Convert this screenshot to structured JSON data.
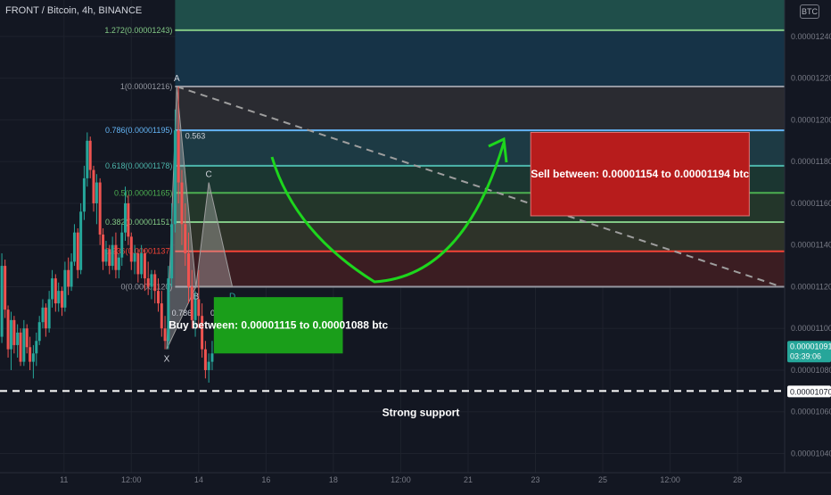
{
  "header": {
    "title": "FRONT / Bitcoin, 4h, BINANCE",
    "badge": "BTC"
  },
  "colors": {
    "background": "#131722",
    "up": "#26a69a",
    "down": "#ef5350",
    "buy_box": "#1a9e1a",
    "sell_box": "#b71c1c",
    "arrow": "#1dd61d"
  },
  "chart_data": {
    "type": "candlestick",
    "instrument": "FRONT / Bitcoin",
    "timeframe": "4h",
    "exchange": "BINANCE",
    "y_ticks": [
      "0.00001240",
      "0.00001220",
      "0.00001200",
      "0.00001180",
      "0.00001160",
      "0.00001140",
      "0.00001120",
      "0.00001100",
      "0.00001080",
      "0.00001060",
      "0.00001040"
    ],
    "y_tick_values": [
      1.24e-05,
      1.22e-05,
      1.2e-05,
      1.18e-05,
      1.16e-05,
      1.14e-05,
      1.12e-05,
      1.1e-05,
      1.08e-05,
      1.06e-05,
      1.04e-05
    ],
    "x_ticks": [
      {
        "label": "11",
        "v": 9.3
      },
      {
        "label": "12:00",
        "v": 11.3
      },
      {
        "label": "14",
        "v": 13.3
      },
      {
        "label": "16",
        "v": 15.3
      },
      {
        "label": "18",
        "v": 17.3
      },
      {
        "label": "12:00",
        "v": 19.3
      },
      {
        "label": "21",
        "v": 21.3
      },
      {
        "label": "23",
        "v": 23.3
      },
      {
        "label": "25",
        "v": 25.3
      },
      {
        "label": "12:00",
        "v": 27.3
      },
      {
        "label": "28",
        "v": 29.3
      }
    ],
    "x_range": [
      7.4,
      30.7
    ],
    "y_range": [
      1.0308e-05,
      1.2575e-05
    ],
    "candles": [
      {
        "x": 7.455,
        "o": 1.096e-05,
        "h": 1.136e-05,
        "l": 1.093e-05,
        "c": 1.13e-05
      },
      {
        "x": 7.55,
        "o": 1.13e-05,
        "h": 1.133e-05,
        "l": 1.105e-05,
        "c": 1.109e-05
      },
      {
        "x": 7.64,
        "o": 1.109e-05,
        "h": 1.111e-05,
        "l": 1.086e-05,
        "c": 1.09e-05
      },
      {
        "x": 7.73,
        "o": 1.09e-05,
        "h": 1.108e-05,
        "l": 1.08e-05,
        "c": 1.104e-05
      },
      {
        "x": 7.82,
        "o": 1.104e-05,
        "h": 1.106e-05,
        "l": 1.088e-05,
        "c": 1.092e-05
      },
      {
        "x": 7.92,
        "o": 1.092e-05,
        "h": 1.102e-05,
        "l": 1.086e-05,
        "c": 1.098e-05
      },
      {
        "x": 8.01,
        "o": 1.098e-05,
        "h": 1.1e-05,
        "l": 1.082e-05,
        "c": 1.084e-05
      },
      {
        "x": 8.11,
        "o": 1.084e-05,
        "h": 1.104e-05,
        "l": 1.082e-05,
        "c": 1.1e-05
      },
      {
        "x": 8.2,
        "o": 1.1e-05,
        "h": 1.102e-05,
        "l": 1.088e-05,
        "c": 1.091e-05
      },
      {
        "x": 8.29,
        "o": 1.091e-05,
        "h": 1.096e-05,
        "l": 1.08e-05,
        "c": 1.084e-05
      },
      {
        "x": 8.39,
        "o": 1.084e-05,
        "h": 1.092e-05,
        "l": 1.076e-05,
        "c": 1.088e-05
      },
      {
        "x": 8.48,
        "o": 1.088e-05,
        "h": 1.098e-05,
        "l": 1.082e-05,
        "c": 1.094e-05
      },
      {
        "x": 8.57,
        "o": 1.094e-05,
        "h": 1.106e-05,
        "l": 1.092e-05,
        "c": 1.103e-05
      },
      {
        "x": 8.67,
        "o": 1.103e-05,
        "h": 1.114e-05,
        "l": 1.1e-05,
        "c": 1.11e-05
      },
      {
        "x": 8.76,
        "o": 1.11e-05,
        "h": 1.112e-05,
        "l": 1.096e-05,
        "c": 1.1e-05
      },
      {
        "x": 8.86,
        "o": 1.1e-05,
        "h": 1.118e-05,
        "l": 1.098e-05,
        "c": 1.114e-05
      },
      {
        "x": 8.95,
        "o": 1.114e-05,
        "h": 1.128e-05,
        "l": 1.11e-05,
        "c": 1.124e-05
      },
      {
        "x": 9.05,
        "o": 1.124e-05,
        "h": 1.126e-05,
        "l": 1.108e-05,
        "c": 1.112e-05
      },
      {
        "x": 9.14,
        "o": 1.112e-05,
        "h": 1.122e-05,
        "l": 1.108e-05,
        "c": 1.118e-05
      },
      {
        "x": 9.24,
        "o": 1.118e-05,
        "h": 1.12e-05,
        "l": 1.106e-05,
        "c": 1.11e-05
      },
      {
        "x": 9.33,
        "o": 1.11e-05,
        "h": 1.132e-05,
        "l": 1.108e-05,
        "c": 1.128e-05
      },
      {
        "x": 9.43,
        "o": 1.128e-05,
        "h": 1.134e-05,
        "l": 1.116e-05,
        "c": 1.12e-05
      },
      {
        "x": 9.52,
        "o": 1.12e-05,
        "h": 1.136e-05,
        "l": 1.118e-05,
        "c": 1.132e-05
      },
      {
        "x": 9.61,
        "o": 1.132e-05,
        "h": 1.15e-05,
        "l": 1.13e-05,
        "c": 1.146e-05
      },
      {
        "x": 9.71,
        "o": 1.146e-05,
        "h": 1.148e-05,
        "l": 1.124e-05,
        "c": 1.128e-05
      },
      {
        "x": 9.8,
        "o": 1.128e-05,
        "h": 1.16e-05,
        "l": 1.126e-05,
        "c": 1.156e-05
      },
      {
        "x": 9.9,
        "o": 1.156e-05,
        "h": 1.178e-05,
        "l": 1.152e-05,
        "c": 1.172e-05
      },
      {
        "x": 9.99,
        "o": 1.172e-05,
        "h": 1.194e-05,
        "l": 1.168e-05,
        "c": 1.19e-05
      },
      {
        "x": 10.08,
        "o": 1.19e-05,
        "h": 1.192e-05,
        "l": 1.172e-05,
        "c": 1.176e-05
      },
      {
        "x": 10.18,
        "o": 1.176e-05,
        "h": 1.178e-05,
        "l": 1.156e-05,
        "c": 1.16e-05
      },
      {
        "x": 10.27,
        "o": 1.16e-05,
        "h": 1.174e-05,
        "l": 1.15e-05,
        "c": 1.17e-05
      },
      {
        "x": 10.37,
        "o": 1.17e-05,
        "h": 1.172e-05,
        "l": 1.14e-05,
        "c": 1.145e-05
      },
      {
        "x": 10.46,
        "o": 1.145e-05,
        "h": 1.148e-05,
        "l": 1.128e-05,
        "c": 1.132e-05
      },
      {
        "x": 10.55,
        "o": 1.132e-05,
        "h": 1.142e-05,
        "l": 1.13e-05,
        "c": 1.138e-05
      },
      {
        "x": 10.65,
        "o": 1.138e-05,
        "h": 1.14e-05,
        "l": 1.126e-05,
        "c": 1.13e-05
      },
      {
        "x": 10.74,
        "o": 1.13e-05,
        "h": 1.144e-05,
        "l": 1.128e-05,
        "c": 1.14e-05
      },
      {
        "x": 10.84,
        "o": 1.14e-05,
        "h": 1.146e-05,
        "l": 1.124e-05,
        "c": 1.128e-05
      },
      {
        "x": 10.93,
        "o": 1.128e-05,
        "h": 1.136e-05,
        "l": 1.124e-05,
        "c": 1.134e-05
      },
      {
        "x": 11.02,
        "o": 1.134e-05,
        "h": 1.15e-05,
        "l": 1.13e-05,
        "c": 1.146e-05
      },
      {
        "x": 11.12,
        "o": 1.146e-05,
        "h": 1.168e-05,
        "l": 1.142e-05,
        "c": 1.16e-05
      },
      {
        "x": 11.21,
        "o": 1.16e-05,
        "h": 1.164e-05,
        "l": 1.14e-05,
        "c": 1.144e-05
      },
      {
        "x": 11.3,
        "o": 1.144e-05,
        "h": 1.146e-05,
        "l": 1.128e-05,
        "c": 1.132e-05
      },
      {
        "x": 11.4,
        "o": 1.132e-05,
        "h": 1.14e-05,
        "l": 1.126e-05,
        "c": 1.136e-05
      },
      {
        "x": 11.5,
        "o": 1.136e-05,
        "h": 1.138e-05,
        "l": 1.122e-05,
        "c": 1.126e-05
      },
      {
        "x": 11.6,
        "o": 1.126e-05,
        "h": 1.14e-05,
        "l": 1.124e-05,
        "c": 1.136e-05
      },
      {
        "x": 11.7,
        "o": 1.136e-05,
        "h": 1.138e-05,
        "l": 1.118e-05,
        "c": 1.124e-05
      },
      {
        "x": 11.8,
        "o": 1.124e-05,
        "h": 1.132e-05,
        "l": 1.116e-05,
        "c": 1.12e-05
      },
      {
        "x": 11.9,
        "o": 1.12e-05,
        "h": 1.128e-05,
        "l": 1.114e-05,
        "c": 1.126e-05
      },
      {
        "x": 12.0,
        "o": 1.126e-05,
        "h": 1.128e-05,
        "l": 1.112e-05,
        "c": 1.118e-05
      },
      {
        "x": 12.1,
        "o": 1.118e-05,
        "h": 1.124e-05,
        "l": 1.108e-05,
        "c": 1.112e-05
      },
      {
        "x": 12.2,
        "o": 1.112e-05,
        "h": 1.118e-05,
        "l": 1.096e-05,
        "c": 1.1e-05
      },
      {
        "x": 12.3,
        "o": 1.1e-05,
        "h": 1.106e-05,
        "l": 1.09e-05,
        "c": 1.094e-05
      },
      {
        "x": 12.4,
        "o": 1.094e-05,
        "h": 1.13e-05,
        "l": 1.09e-05,
        "c": 1.124e-05
      },
      {
        "x": 12.5,
        "o": 1.124e-05,
        "h": 1.16e-05,
        "l": 1.12e-05,
        "c": 1.15e-05
      },
      {
        "x": 12.6,
        "o": 1.15e-05,
        "h": 1.205e-05,
        "l": 1.146e-05,
        "c": 1.195e-05
      },
      {
        "x": 12.7,
        "o": 1.195e-05,
        "h": 1.216e-05,
        "l": 1.16e-05,
        "c": 1.17e-05
      },
      {
        "x": 12.8,
        "o": 1.17e-05,
        "h": 1.176e-05,
        "l": 1.14e-05,
        "c": 1.15e-05
      },
      {
        "x": 12.9,
        "o": 1.15e-05,
        "h": 1.16e-05,
        "l": 1.13e-05,
        "c": 1.136e-05
      },
      {
        "x": 13.0,
        "o": 1.136e-05,
        "h": 1.146e-05,
        "l": 1.112e-05,
        "c": 1.12e-05
      },
      {
        "x": 13.1,
        "o": 1.12e-05,
        "h": 1.128e-05,
        "l": 1.1e-05,
        "c": 1.104e-05
      },
      {
        "x": 13.2,
        "o": 1.104e-05,
        "h": 1.118e-05,
        "l": 1.096e-05,
        "c": 1.114e-05
      },
      {
        "x": 13.3,
        "o": 1.114e-05,
        "h": 1.128e-05,
        "l": 1.1e-05,
        "c": 1.106e-05
      },
      {
        "x": 13.4,
        "o": 1.106e-05,
        "h": 1.112e-05,
        "l": 1.086e-05,
        "c": 1.09e-05
      },
      {
        "x": 13.5,
        "o": 1.09e-05,
        "h": 1.094e-05,
        "l": 1.076e-05,
        "c": 1.08e-05
      },
      {
        "x": 13.6,
        "o": 1.08e-05,
        "h": 1.088e-05,
        "l": 1.074e-05,
        "c": 1.084e-05
      },
      {
        "x": 13.7,
        "o": 1.084e-05,
        "h": 1.094e-05,
        "l": 1.08e-05,
        "c": 1.088e-05
      }
    ],
    "fib_levels": [
      {
        "label": "1.272(0.00001243)",
        "value": 1.243e-05,
        "color": "#81c784"
      },
      {
        "label": "1(0.00001216)",
        "value": 1.216e-05,
        "color": "#9598a1"
      },
      {
        "label": "0.786(0.00001195)",
        "value": 1.195e-05,
        "color": "#64b5f6"
      },
      {
        "label": "0.618(0.00001178)",
        "value": 1.178e-05,
        "color": "#4db6ac"
      },
      {
        "label": "0.5(0.00001165)",
        "value": 1.165e-05,
        "color": "#4caf50"
      },
      {
        "label": "0.382(0.00001151)",
        "value": 1.151e-05,
        "color": "#81c784"
      },
      {
        "label": "0.236(0.00001137)",
        "value": 1.137e-05,
        "color": "#f44336"
      },
      {
        "label": "0(0.00001120)",
        "value": 1.12e-05,
        "color": "#9598a1"
      }
    ],
    "fib_bands": [
      {
        "from": 1.243e-05,
        "to": 1.2575e-05,
        "color": "#1f4e4a"
      },
      {
        "from": 1.216e-05,
        "to": 1.243e-05,
        "color": "#163347"
      },
      {
        "from": 1.195e-05,
        "to": 1.216e-05,
        "color": "#2a2b31"
      },
      {
        "from": 1.178e-05,
        "to": 1.195e-05,
        "color": "#1d3a44"
      },
      {
        "from": 1.165e-05,
        "to": 1.178e-05,
        "color": "#1b3631"
      },
      {
        "from": 1.151e-05,
        "to": 1.165e-05,
        "color": "#23362a"
      },
      {
        "from": 1.137e-05,
        "to": 1.151e-05,
        "color": "#2e3329"
      },
      {
        "from": 1.12e-05,
        "to": 1.137e-05,
        "color": "#3b1d22"
      }
    ],
    "fib_x_range": [
      12.6,
      30.7
    ],
    "harmonic": {
      "points": [
        {
          "name": "X",
          "x": 12.35,
          "y": 1.09e-05
        },
        {
          "name": "A",
          "x": 12.65,
          "y": 1.216e-05
        },
        {
          "name": "B",
          "x": 13.22,
          "y": 1.12e-05
        },
        {
          "name": "C",
          "x": 13.6,
          "y": 1.17e-05
        },
        {
          "name": "D",
          "x": 14.3,
          "y": 1.12e-05
        }
      ],
      "ratios": [
        {
          "label": "0.786",
          "x": 12.5,
          "y": 1.106e-05
        },
        {
          "label": "0.786",
          "x": 13.65,
          "y": 1.106e-05
        },
        {
          "label": "0.563",
          "x": 12.9,
          "y": 1.191e-05
        }
      ]
    },
    "annotations": {
      "buy": {
        "text": "Buy between: 0.00001115 to 0.00001088 btc",
        "x1": 13.75,
        "x2": 17.58,
        "y1": 1.088e-05,
        "y2": 1.115e-05
      },
      "sell": {
        "text": "Sell between: 0.00001154 to 0.00001194 btc",
        "x1": 23.16,
        "x2": 29.65,
        "y1": 1.154e-05,
        "y2": 1.194e-05
      },
      "support": {
        "text": "Strong support",
        "value": 1.07e-05
      },
      "trend_line": {
        "x1": 12.65,
        "y1": 1.216e-05,
        "x2": 30.6,
        "y2": 1.12e-05
      },
      "price_label": "0.00001091",
      "countdown": "03:39:06",
      "support_label": "0.00001070"
    }
  }
}
